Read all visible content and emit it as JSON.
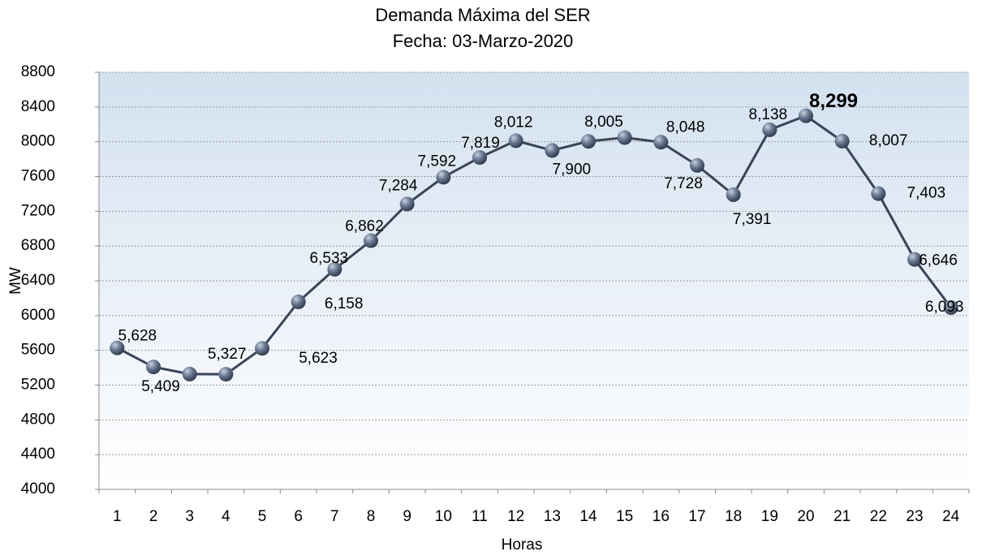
{
  "chart_data": {
    "type": "line",
    "title": "Demanda Máxima del SER",
    "subtitle": "Fecha: 03-Marzo-2020",
    "xlabel": "Horas",
    "ylabel": "MW",
    "categories": [
      "1",
      "2",
      "3",
      "4",
      "5",
      "6",
      "7",
      "8",
      "9",
      "10",
      "11",
      "12",
      "13",
      "14",
      "15",
      "16",
      "17",
      "18",
      "19",
      "20",
      "21",
      "22",
      "23",
      "24"
    ],
    "series": [
      {
        "name": "Demanda",
        "color": "#3a4458",
        "values": [
          5628,
          5409,
          5327,
          5325,
          5623,
          6158,
          6533,
          6862,
          7284,
          7592,
          7819,
          8012,
          7900,
          8005,
          8048,
          7995,
          7728,
          7391,
          8138,
          8299,
          8007,
          7403,
          6646,
          6093
        ],
        "value_labels": [
          "5,628",
          "5,409",
          "5,327",
          null,
          "5,623",
          "6,158",
          "6,533",
          "6,862",
          "7,284",
          "7,592",
          "7,819",
          "8,012",
          "7,900",
          "8,005",
          "8,048",
          null,
          "7,728",
          "7,391",
          "8,138",
          "8,299",
          "8,007",
          "7,403",
          "6,646",
          "6,093"
        ]
      }
    ],
    "ylim": [
      4000,
      8800
    ],
    "yticks": [
      4000,
      4400,
      4800,
      5200,
      5600,
      6000,
      6400,
      6800,
      7200,
      7600,
      8000,
      8400,
      8800
    ],
    "grid": true
  }
}
